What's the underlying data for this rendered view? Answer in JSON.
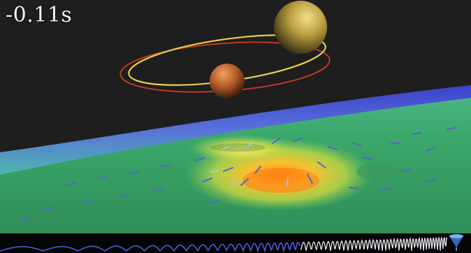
{
  "timestamp": "-0.11s",
  "icons": {
    "corner": "cone-logo-icon"
  },
  "colors": {
    "background": "#1e1e1e",
    "large_body": "#c8b24a",
    "small_body": "#b2552a",
    "orbit_large": "#e4d050",
    "orbit_small": "#c03a1e",
    "surface_green": "#3fae6a",
    "surface_yellow": "#f2e040",
    "surface_orange": "#f6a02a",
    "edge_blue": "#2a2ab0",
    "waveform": "#4a5ad8",
    "waveform_late": "#e8e8f0"
  }
}
